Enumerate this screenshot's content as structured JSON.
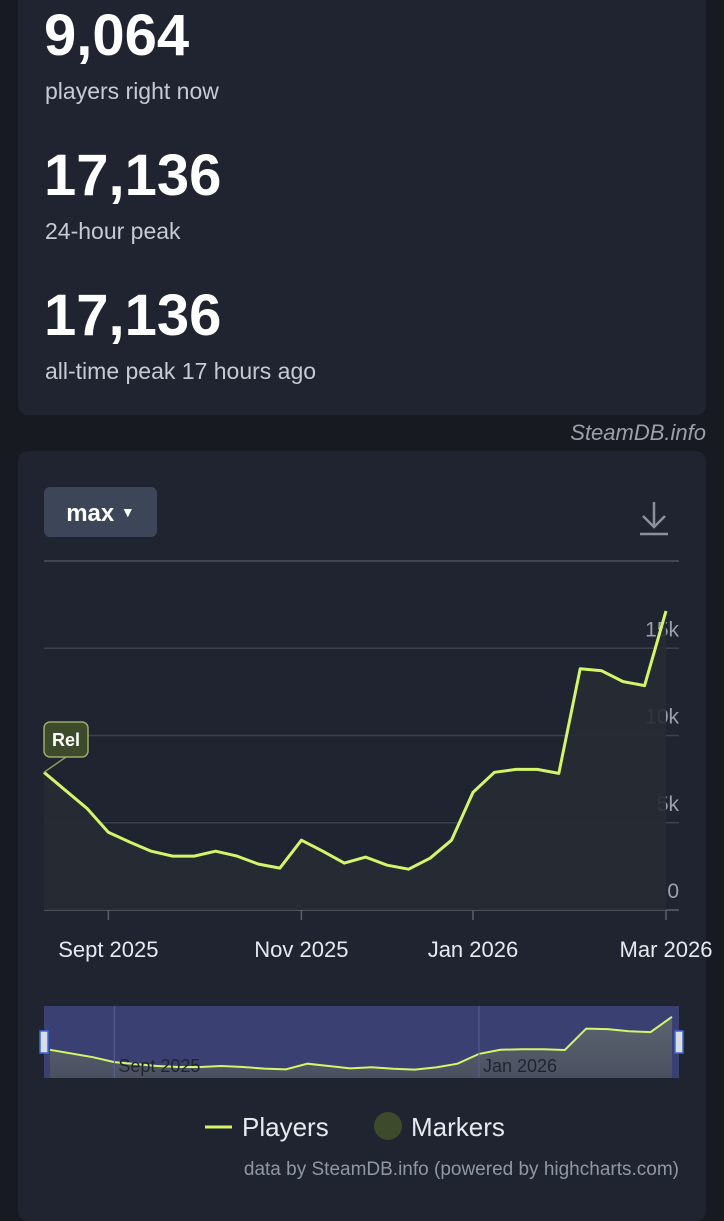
{
  "stats": [
    {
      "value": "9,064",
      "label": "players right now"
    },
    {
      "value": "17,136",
      "label": "24-hour peak"
    },
    {
      "value": "17,136",
      "label": "all-time peak 17 hours ago"
    }
  ],
  "brand": "SteamDB.info",
  "range_button": "max",
  "credits": "data by SteamDB.info (powered by highcharts.com)",
  "chart_data": {
    "type": "line",
    "categories": [
      null,
      null,
      null,
      "Sept 2025",
      null,
      null,
      null,
      null,
      null,
      null,
      null,
      null,
      "Nov 2025",
      null,
      null,
      null,
      null,
      null,
      null,
      null,
      "Jan 2026",
      null,
      null,
      null,
      null,
      null,
      null,
      null,
      null,
      "Mar 2026"
    ],
    "series": [
      {
        "name": "Players",
        "color": "#d4f56a",
        "values": [
          7890,
          6860,
          5830,
          4460,
          3890,
          3370,
          3090,
          3090,
          3370,
          3090,
          2630,
          2400,
          4000,
          3370,
          2690,
          3030,
          2570,
          2340,
          2970,
          4000,
          6740,
          7890,
          8060,
          8060,
          7830,
          13830,
          13710,
          13090,
          12860,
          17136
        ]
      }
    ],
    "markers": {
      "name": "Markers",
      "color": "#3e4a2c",
      "labels": [
        "Rel"
      ]
    },
    "ylim": [
      0,
      20000
    ],
    "yticks": [
      0,
      {
        "value": 5000,
        "label": "5k"
      },
      {
        "value": 10000,
        "label": "10k"
      },
      {
        "value": 15000,
        "label": "15k"
      }
    ],
    "grid": true
  }
}
